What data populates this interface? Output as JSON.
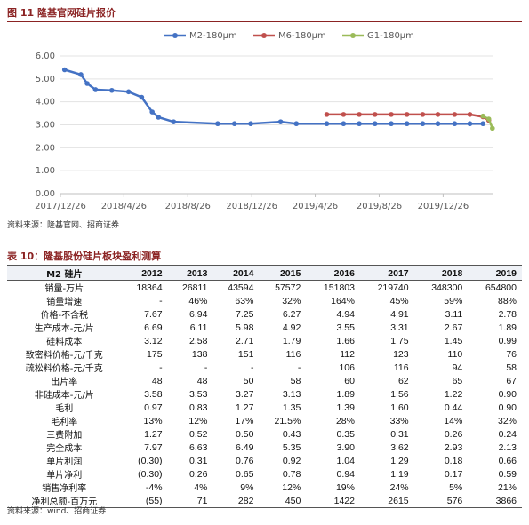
{
  "figure_title": "图 11  隆基官网硅片报价",
  "chart_data": {
    "type": "line",
    "xlim": [
      "2017/12/26",
      "2020/3/31"
    ],
    "xticks": [
      "2017/12/26",
      "2018/4/26",
      "2018/8/26",
      "2018/12/26",
      "2019/4/26",
      "2019/8/26",
      "2019/12/26"
    ],
    "ylim": [
      0,
      6
    ],
    "yticks": [
      {
        "value": 0,
        "label": "0.00"
      },
      {
        "value": 1,
        "label": "1.00"
      },
      {
        "value": 2,
        "label": "2.00"
      },
      {
        "value": 3,
        "label": "3.00"
      },
      {
        "value": 4,
        "label": "4.00"
      },
      {
        "value": 5,
        "label": "5.00"
      },
      {
        "value": 6,
        "label": "6.00"
      }
    ],
    "grid": true,
    "legend": "top",
    "series": [
      {
        "name": "M2-180μm",
        "color": "#4472c4",
        "x": [
          "2018/1/3",
          "2018/2/3",
          "2018/2/15",
          "2018/3/3",
          "2018/4/3",
          "2018/5/5",
          "2018/5/30",
          "2018/6/19",
          "2018/7/1",
          "2018/7/30",
          "2018/10/22",
          "2018/11/23",
          "2018/12/24",
          "2019/2/19",
          "2019/3/21",
          "2019/5/18",
          "2019/6/19",
          "2019/7/19",
          "2019/8/18",
          "2019/9/18",
          "2019/10/18",
          "2019/11/17",
          "2019/12/16",
          "2020/1/17",
          "2020/2/15",
          "2020/3/11"
        ],
        "values": [
          5.4,
          5.19,
          4.8,
          4.53,
          4.5,
          4.44,
          4.2,
          3.56,
          3.33,
          3.13,
          3.05,
          3.05,
          3.05,
          3.13,
          3.05,
          3.05,
          3.05,
          3.05,
          3.05,
          3.05,
          3.05,
          3.05,
          3.05,
          3.05,
          3.05,
          3.05
        ]
      },
      {
        "name": "M6-180μm",
        "color": "#c0504d",
        "x": [
          "2019/5/18",
          "2019/6/19",
          "2019/7/19",
          "2019/8/18",
          "2019/9/18",
          "2019/10/18",
          "2019/11/17",
          "2019/12/16",
          "2020/1/17",
          "2020/2/15",
          "2020/3/11",
          "2020/3/22"
        ],
        "values": [
          3.45,
          3.45,
          3.45,
          3.45,
          3.45,
          3.45,
          3.45,
          3.45,
          3.45,
          3.45,
          3.35,
          3.2
        ]
      },
      {
        "name": "G1-180μm",
        "color": "#9bbb59",
        "x": [
          "2020/3/11",
          "2020/3/22",
          "2020/3/29"
        ],
        "values": [
          3.38,
          3.25,
          2.85
        ]
      }
    ]
  },
  "figure_source": "资料来源：隆基官网、招商证券",
  "table_title": "表 10：隆基股份硅片板块盈利测算",
  "table": {
    "header": [
      "M2 硅片",
      "2012",
      "2013",
      "2014",
      "2015",
      "2016",
      "2017",
      "2018",
      "2019"
    ],
    "rows": [
      [
        "销量-万片",
        "18364",
        "26811",
        "43594",
        "57572",
        "151803",
        "219740",
        "348300",
        "654800"
      ],
      [
        "销量增速",
        "-",
        "46%",
        "63%",
        "32%",
        "164%",
        "45%",
        "59%",
        "88%"
      ],
      [
        "价格-不含税",
        "7.67",
        "6.94",
        "7.25",
        "6.27",
        "4.94",
        "4.91",
        "3.11",
        "2.78"
      ],
      [
        "生产成本-元/片",
        "6.69",
        "6.11",
        "5.98",
        "4.92",
        "3.55",
        "3.31",
        "2.67",
        "1.89"
      ],
      [
        "硅料成本",
        "3.12",
        "2.58",
        "2.71",
        "1.79",
        "1.66",
        "1.75",
        "1.45",
        "0.99"
      ],
      [
        "致密料价格-元/千克",
        "175",
        "138",
        "151",
        "116",
        "112",
        "123",
        "110",
        "76"
      ],
      [
        "疏松料价格-元/千克",
        "-",
        "-",
        "-",
        "-",
        "106",
        "116",
        "94",
        "58"
      ],
      [
        "出片率",
        "48",
        "48",
        "50",
        "58",
        "60",
        "62",
        "65",
        "67"
      ],
      [
        "非硅成本-元/片",
        "3.58",
        "3.53",
        "3.27",
        "3.13",
        "1.89",
        "1.56",
        "1.22",
        "0.90"
      ],
      [
        "毛利",
        "0.97",
        "0.83",
        "1.27",
        "1.35",
        "1.39",
        "1.60",
        "0.44",
        "0.90"
      ],
      [
        "毛利率",
        "13%",
        "12%",
        "17%",
        "21.5%",
        "28%",
        "33%",
        "14%",
        "32%"
      ],
      [
        "三费附加",
        "1.27",
        "0.52",
        "0.50",
        "0.43",
        "0.35",
        "0.31",
        "0.26",
        "0.24"
      ],
      [
        "完全成本",
        "7.97",
        "6.63",
        "6.49",
        "5.35",
        "3.90",
        "3.62",
        "2.93",
        "2.13"
      ],
      [
        "单片利润",
        "(0.30)",
        "0.31",
        "0.76",
        "0.92",
        "1.04",
        "1.29",
        "0.18",
        "0.66"
      ],
      [
        "单片净利",
        "(0.30)",
        "0.26",
        "0.65",
        "0.78",
        "0.94",
        "1.19",
        "0.17",
        "0.59"
      ],
      [
        "销售净利率",
        "-4%",
        "4%",
        "9%",
        "12%",
        "19%",
        "24%",
        "5%",
        "21%"
      ],
      [
        "净利总额-百万元",
        "(55)",
        "71",
        "282",
        "450",
        "1422",
        "2615",
        "576",
        "3866"
      ]
    ]
  },
  "table_source": "资料来源：wind、招商证券"
}
